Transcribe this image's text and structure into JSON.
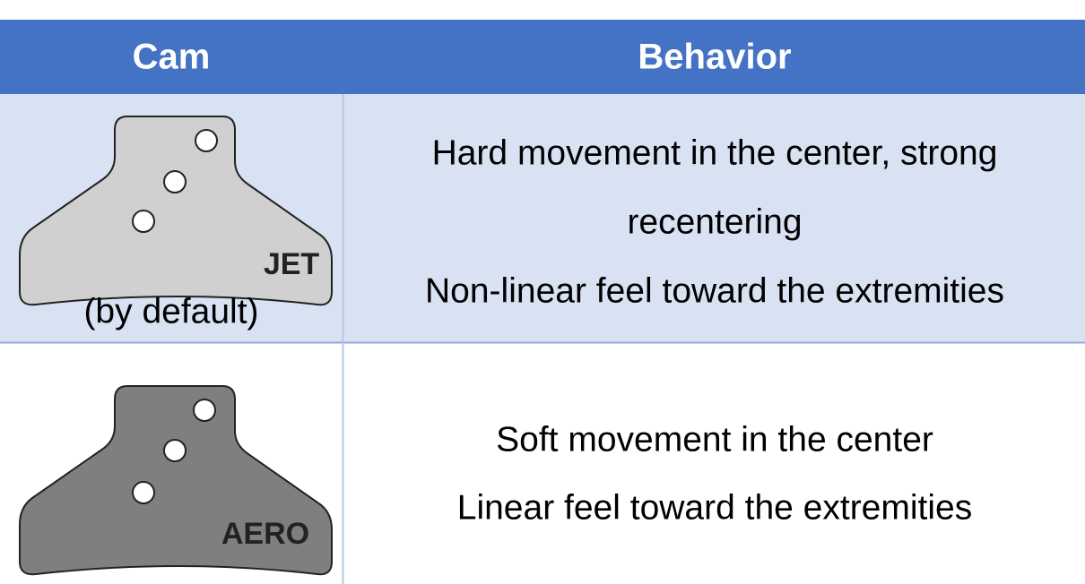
{
  "table": {
    "header": [
      "Cam",
      "Behavior"
    ],
    "rows": [
      {
        "cam_label": "JET",
        "cam_note": "(by default)",
        "behavior": [
          "Hard movement in the center, strong",
          "recentering",
          "Non-linear feel toward the extremities"
        ]
      },
      {
        "cam_label": "AERO",
        "behavior": [
          "Soft movement in the center",
          "Linear feel toward the extremities"
        ]
      }
    ]
  }
}
